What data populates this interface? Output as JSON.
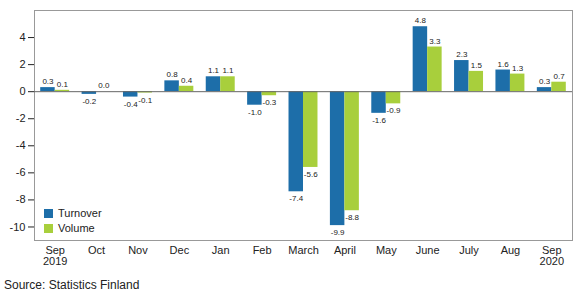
{
  "chart_data": {
    "type": "bar",
    "caption": "Source: Statistics Finland",
    "categories": [
      "Sep\n2019",
      "Oct",
      "Nov",
      "Dec",
      "Jan",
      "Feb",
      "March",
      "April",
      "May",
      "June",
      "July",
      "Aug",
      "Sep\n2020"
    ],
    "series": [
      {
        "name": "Turnover",
        "color": "#1d6ea9",
        "values": [
          0.3,
          -0.2,
          -0.4,
          0.8,
          1.1,
          -1.0,
          -7.4,
          -9.9,
          -1.6,
          4.8,
          2.3,
          1.6,
          0.3
        ],
        "value_labels": [
          "0.3",
          "-0.2",
          "-0.4",
          "0.8",
          "1.1",
          "-1.0",
          "-7.4",
          "-9.9",
          "-1.6",
          "4.8",
          "2.3",
          "1.6",
          "0.3"
        ]
      },
      {
        "name": "Volume",
        "color": "#a8cf3c",
        "values": [
          0.1,
          0.0,
          -0.1,
          0.4,
          1.1,
          -0.3,
          -5.6,
          -8.8,
          -0.9,
          3.3,
          1.5,
          1.3,
          0.7
        ],
        "value_labels": [
          "0.1",
          "0.0",
          "-0.1",
          "0.4",
          "1.1",
          "-0.3",
          "-5.6",
          "-8.8",
          "-0.9",
          "3.3",
          "1.5",
          "1.3",
          "0.7"
        ]
      }
    ],
    "ylim": [
      -11,
      6
    ],
    "yticks": [
      -10,
      -8,
      -6,
      -4,
      -2,
      0,
      2,
      4
    ],
    "grid": false,
    "legend": "lower left",
    "data_labels": true
  }
}
